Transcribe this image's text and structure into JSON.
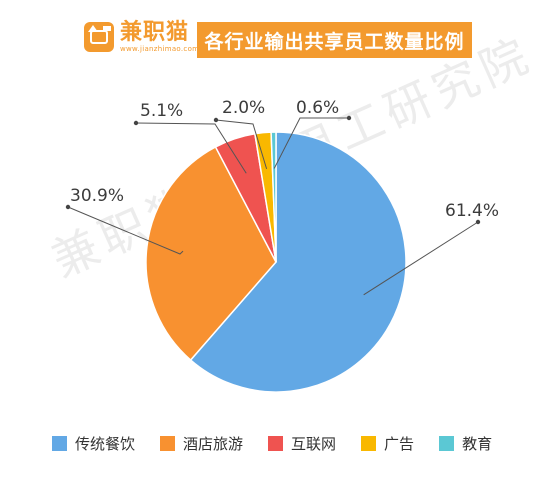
{
  "brand": {
    "name": "兼职猫",
    "url": "www.jianzhimao.com",
    "accent_color": "#f39a2e"
  },
  "watermark": "兼职猫灵活用工研究院",
  "chart_data": {
    "type": "pie",
    "title": "各行业输出共享员工数量比例",
    "categories": [
      "传统餐饮",
      "酒店旅游",
      "互联网",
      "广告",
      "教育"
    ],
    "values": [
      61.4,
      30.9,
      5.1,
      2.0,
      0.6
    ],
    "labels": [
      "61.4%",
      "30.9%",
      "5.1%",
      "2.0%",
      "0.6%"
    ],
    "colors": [
      "#62a8e5",
      "#f89130",
      "#ef5350",
      "#f9b800",
      "#5bc8d4"
    ],
    "start": "top",
    "direction": "clockwise",
    "legend_position": "bottom"
  }
}
